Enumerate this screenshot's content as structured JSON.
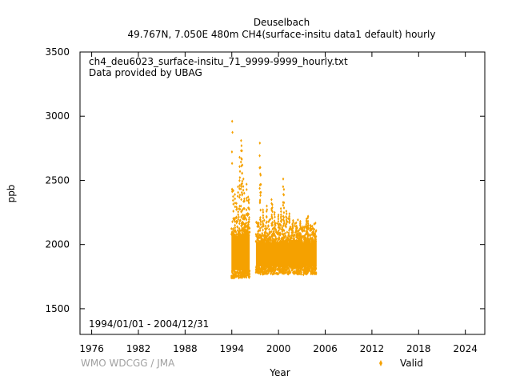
{
  "chart_data": {
    "type": "scatter",
    "title": "Deuselbach",
    "subtitle": "49.767N, 7.050E 480m    CH4(surface-insitu data1 default) hourly",
    "xlabel": "Year",
    "ylabel": "ppb",
    "xlim": [
      1974.5,
      2026.5
    ],
    "ylim": [
      1300,
      3500
    ],
    "x_ticks": [
      1976,
      1982,
      1988,
      1994,
      2000,
      2006,
      2012,
      2018,
      2024
    ],
    "y_ticks": [
      1500,
      2000,
      2500,
      3000,
      3500
    ],
    "annotations": {
      "file": "ch4_deu6023_surface-insitu_71_9999-9999_hourly.txt",
      "provider": "Data provided by UBAG",
      "period": "1994/01/01 - 2004/12/31",
      "credit": "WMO WDCGG / JMA"
    },
    "legend": {
      "position": "bottom-right"
    },
    "series": [
      {
        "name": "Valid",
        "color": "#f5a100",
        "segments": [
          {
            "start": 1993.95,
            "end": 1996.3,
            "low": 1740,
            "high": 2150
          },
          {
            "start": 1997.1,
            "end": 2004.9,
            "low": 1770,
            "high": 2100
          }
        ],
        "spikes": [
          [
            1994.05,
            2960
          ],
          [
            1994.2,
            2420
          ],
          [
            1994.4,
            2390
          ],
          [
            1994.6,
            2320
          ],
          [
            1994.8,
            2450
          ],
          [
            1995.0,
            2680
          ],
          [
            1995.05,
            2570
          ],
          [
            1995.2,
            2810
          ],
          [
            1995.25,
            2770
          ],
          [
            1995.3,
            2730
          ],
          [
            1995.35,
            2620
          ],
          [
            1995.5,
            2510
          ],
          [
            1995.6,
            2400
          ],
          [
            1995.9,
            2470
          ],
          [
            1996.1,
            2370
          ],
          [
            1996.2,
            2350
          ],
          [
            1997.6,
            2790
          ],
          [
            1997.65,
            2600
          ],
          [
            1997.7,
            2540
          ],
          [
            1998.0,
            2270
          ],
          [
            1998.5,
            2300
          ],
          [
            1999.1,
            2350
          ],
          [
            1999.2,
            2310
          ],
          [
            1999.5,
            2250
          ],
          [
            2000.0,
            2230
          ],
          [
            2000.3,
            2280
          ],
          [
            2000.6,
            2510
          ],
          [
            2000.7,
            2430
          ],
          [
            2001.0,
            2260
          ],
          [
            2001.4,
            2240
          ],
          [
            2001.8,
            2160
          ],
          [
            2002.3,
            2130
          ],
          [
            2002.8,
            2180
          ],
          [
            2003.1,
            2120
          ],
          [
            2003.6,
            2200
          ],
          [
            2003.8,
            2220
          ],
          [
            2004.1,
            2150
          ],
          [
            2004.5,
            2080
          ]
        ],
        "dips": [
          [
            1994.3,
            1740
          ],
          [
            1994.6,
            1750
          ],
          [
            1995.1,
            1760
          ],
          [
            1995.6,
            1755
          ],
          [
            1997.3,
            1790
          ],
          [
            1998.8,
            1795
          ],
          [
            2000.5,
            1790
          ],
          [
            2002.5,
            1770
          ],
          [
            2003.2,
            1765
          ],
          [
            2004.7,
            1780
          ]
        ]
      }
    ]
  }
}
